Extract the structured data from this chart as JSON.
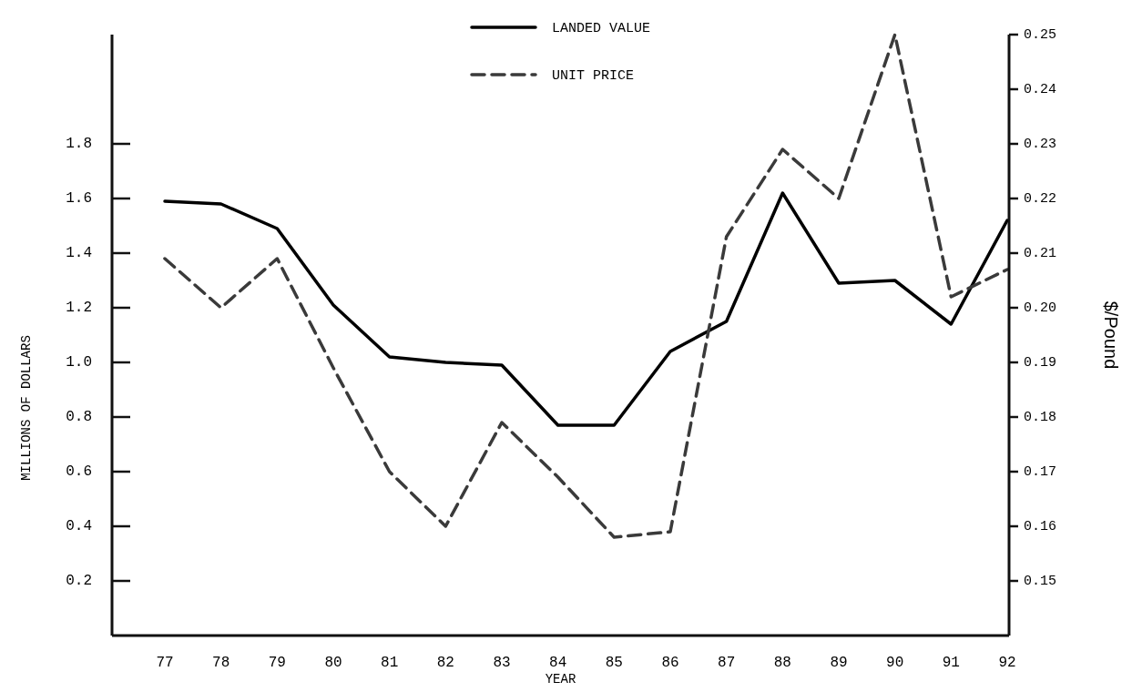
{
  "chart_data": {
    "type": "line",
    "xlabel": "YEAR",
    "ylabel": "MILLIONS OF DOLLARS",
    "y2label": "$/Pound",
    "categories": [
      "77",
      "78",
      "79",
      "80",
      "81",
      "82",
      "83",
      "84",
      "85",
      "86",
      "87",
      "88",
      "89",
      "90",
      "91",
      "92"
    ],
    "series": [
      {
        "name": "LANDED VALUE",
        "color": "#000000",
        "line_style": "solid",
        "values": [
          1.59,
          1.58,
          1.49,
          1.21,
          1.02,
          1.0,
          0.99,
          0.77,
          0.77,
          1.04,
          1.15,
          1.62,
          1.29,
          1.3,
          1.14,
          1.52
        ]
      },
      {
        "name": "UNIT PRICE",
        "color": "#3a3a3a",
        "line_style": "dashed",
        "axis": "y2",
        "values": [
          0.209,
          0.2,
          0.209,
          0.189,
          0.17,
          0.16,
          0.179,
          0.169,
          0.158,
          0.159,
          0.213,
          0.229,
          0.22,
          0.25,
          0.202,
          0.207
        ]
      }
    ],
    "ylim": [
      0,
      2.2
    ],
    "yticks": [
      0.2,
      0.4,
      0.6,
      0.8,
      {
        "value": 1,
        "label": "1.0"
      },
      1.2,
      1.4,
      1.6,
      1.8
    ],
    "y2lim": [
      0.14,
      0.25
    ],
    "y2ticks": [
      0.15,
      0.16,
      0.17,
      0.18,
      0.19,
      {
        "value": 0.2,
        "label": "0.20"
      },
      0.21,
      0.22,
      0.23,
      0.24,
      0.25
    ],
    "grid": false,
    "legend": "top",
    "marker": "none"
  }
}
